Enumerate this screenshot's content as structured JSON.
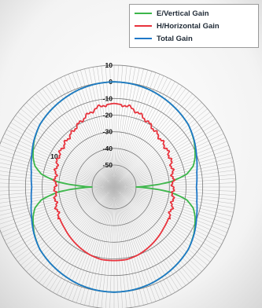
{
  "chart_data": {
    "type": "polar-line",
    "r_axis": {
      "ticks": [
        10,
        0,
        -10,
        -20,
        -30,
        -40,
        -50
      ],
      "outer_ring": 10,
      "inner_ring": -50,
      "side_label": "10"
    },
    "angle_grid": "radial spokes every 2 degrees",
    "grid": true,
    "legend": {
      "position": "top-right"
    },
    "series": [
      {
        "name": "E/Vertical Gain",
        "color": "#3cb64a",
        "angle_deg": [
          0,
          10,
          20,
          30,
          40,
          50,
          60,
          70,
          75,
          80,
          85,
          90,
          95,
          100,
          105,
          110,
          120,
          130,
          140,
          150,
          160,
          170,
          180
        ],
        "gain_db": [
          0,
          -0.3,
          -1,
          -2.2,
          -3.5,
          -5,
          -7.8,
          -11.5,
          -14,
          -19,
          -30,
          -50,
          -30,
          -19,
          -14,
          -11.5,
          -7.8,
          -5,
          -3.5,
          -2.2,
          -1,
          -0.3,
          0
        ]
      },
      {
        "name": "H/Horizontal Gain",
        "color": "#e8323c",
        "angle_deg": [
          0,
          10,
          20,
          30,
          40,
          50,
          60,
          70,
          80,
          90,
          100,
          110,
          120,
          130,
          140,
          150,
          160,
          170,
          180
        ],
        "gain_db": [
          -13,
          -14,
          -17,
          -20,
          -22.5,
          -24,
          -25,
          -26.5,
          -27.5,
          -28,
          -27.5,
          -26.5,
          -25.5,
          -24.5,
          -23,
          -21.5,
          -20,
          -19,
          -19
        ]
      },
      {
        "name": "Total Gain",
        "color": "#1f78c8",
        "angle_deg": [
          0,
          10,
          20,
          30,
          40,
          50,
          60,
          70,
          80,
          90,
          100,
          110,
          120,
          130,
          140,
          150,
          160,
          170,
          180
        ],
        "gain_db": [
          0,
          -0.3,
          -1,
          -2.2,
          -3.5,
          -5,
          -7.6,
          -10.5,
          -12.8,
          -13.8,
          -12.8,
          -10.5,
          -7.6,
          -5,
          -3.5,
          -2.2,
          -1,
          -0.3,
          0
        ]
      }
    ]
  }
}
